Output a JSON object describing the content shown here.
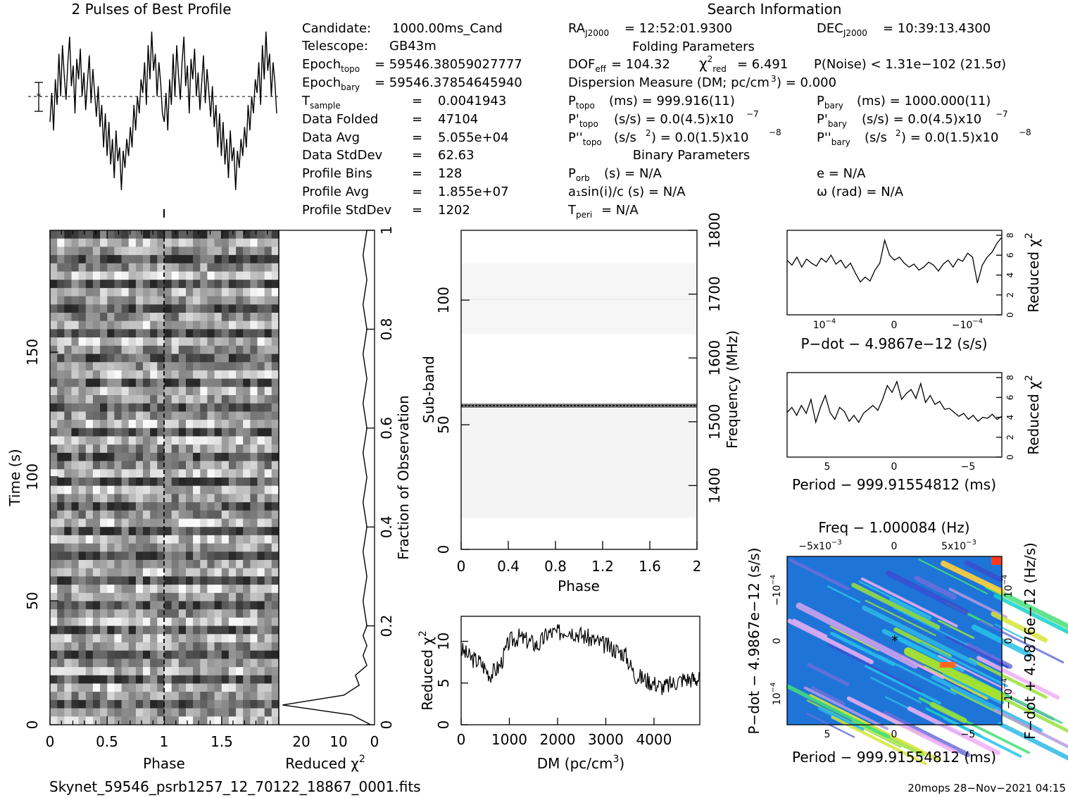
{
  "header": {
    "profile_title": "2 Pulses of Best Profile",
    "search_title": "Search Information",
    "folding_title": "Folding Parameters",
    "binary_title": "Binary Parameters"
  },
  "info_left": [
    {
      "label": "Candidate:",
      "value": "1000.00ms_Cand"
    },
    {
      "label": "Telescope:",
      "value": "GB43m"
    },
    {
      "label": "Epoch_topo",
      "value": "= 59546.38059027777"
    },
    {
      "label": "Epoch_bary",
      "value": "= 59546.37854645940"
    },
    {
      "label": "T_sample",
      "value": "0.0041943"
    },
    {
      "label": "Data Folded",
      "value": "47104"
    },
    {
      "label": "Data Avg",
      "value": "5.055e+04"
    },
    {
      "label": "Data StdDev",
      "value": "62.63"
    },
    {
      "label": "Profile Bins",
      "value": "128"
    },
    {
      "label": "Profile Avg",
      "value": "1.855e+07"
    },
    {
      "label": "Profile StdDev",
      "value": "1202"
    }
  ],
  "info_right": {
    "ra": "= 12:52:01.9300",
    "dec": "= 10:39:13.4300",
    "dof": "= 104.32",
    "chi2red": "= 6.491",
    "pnoise": "P(Noise) < 1.31e−102   (21.5σ)",
    "dm": "Dispersion Measure (DM; pc/cm",
    "dm_value": ") = 0.000",
    "ptopo": "(ms) =  999.916(11)",
    "pbary": "(ms) =  1000.000(11)",
    "pdtopo": "(s/s) = 0.0(4.5)x10",
    "pdbary": "(s/s) = 0.0(4.5)x10",
    "pddtopo": "(s/s",
    "pddtopo_tail": ") = 0.0(1.5)x10",
    "pddbary_tail": ") = 0.0(1.5)x10",
    "porb": "(s) = N/A",
    "asini": "a₁sin(i)/c (s) = N/A",
    "tperi": "= N/A",
    "ecc": "e = N/A",
    "omega": "ω (rad) = N/A"
  },
  "footer": {
    "filename": "Skynet_59546_psrb1257_12_70122_18867_0001.fits",
    "stamp": "20mops 28−Nov−2021 04:15"
  },
  "chart_data": [
    {
      "type": "line",
      "title": "2 Pulses of Best Profile",
      "xlabel": "",
      "ylabel": "",
      "x_range": [
        0,
        2
      ],
      "values": [
        0.45,
        0.62,
        0.4,
        0.7,
        0.55,
        0.85,
        0.6,
        0.9,
        0.72,
        0.58,
        0.8,
        0.95,
        0.66,
        0.78,
        0.5,
        0.82,
        0.7,
        0.88,
        0.6,
        0.74,
        0.52,
        0.68,
        0.84,
        0.56,
        0.76,
        0.62,
        0.48,
        0.66,
        0.42,
        0.55,
        0.3,
        0.5,
        0.25,
        0.45,
        0.2,
        0.35,
        0.12,
        0.4,
        0.22,
        0.3,
        0.05,
        0.28,
        0.18,
        0.35,
        0.25,
        0.42,
        0.3,
        0.55,
        0.4,
        0.6,
        0.5,
        0.7,
        0.62,
        0.8,
        0.55,
        0.9,
        0.7,
        0.98,
        0.75,
        0.85,
        0.6,
        0.8,
        0.68,
        0.5,
        0.45,
        0.62,
        0.4,
        0.7,
        0.55,
        0.85,
        0.6,
        0.9,
        0.72,
        0.58,
        0.8,
        0.95,
        0.66,
        0.78,
        0.5,
        0.82,
        0.7,
        0.88,
        0.6,
        0.74,
        0.52,
        0.68,
        0.84,
        0.56,
        0.76,
        0.62,
        0.48,
        0.66,
        0.42,
        0.55,
        0.3,
        0.5,
        0.25,
        0.45,
        0.2,
        0.35,
        0.12,
        0.4,
        0.22,
        0.3,
        0.05,
        0.28,
        0.18,
        0.35,
        0.25,
        0.42,
        0.3,
        0.55,
        0.4,
        0.6,
        0.5,
        0.7,
        0.62,
        0.8,
        0.55,
        0.9,
        0.7,
        0.98,
        0.75,
        0.85,
        0.6,
        0.8,
        0.68,
        0.5
      ]
    },
    {
      "type": "heatmap",
      "xlabel": "Phase",
      "ylabel": "Time (s)",
      "x_ticks": [
        "0",
        "0.5",
        "1",
        "1.5"
      ],
      "y_ticks": [
        "0",
        "50",
        "100",
        "150"
      ],
      "xlim": [
        0,
        2
      ],
      "ylim": [
        0,
        190
      ],
      "rows": 60
    },
    {
      "type": "line",
      "xlabel": "Reduced χ2",
      "ylabel": "Fraction of Observation",
      "x_ticks": [
        "20",
        "10",
        "0"
      ],
      "y_ticks": [
        "0",
        "0.2",
        "0.4",
        "0.6",
        "0.8",
        "1"
      ],
      "xlim": [
        25,
        0
      ],
      "ylim": [
        0,
        1
      ],
      "y": [
        0,
        0.02,
        0.04,
        0.06,
        0.08,
        0.1,
        0.12,
        0.14,
        0.16,
        0.18,
        0.2,
        0.25,
        0.3,
        0.35,
        0.4,
        0.45,
        0.5,
        0.55,
        0.6,
        0.65,
        0.7,
        0.75,
        0.8,
        0.85,
        0.9,
        0.95,
        1.0
      ],
      "x": [
        1,
        6,
        24,
        8,
        4,
        5,
        2,
        3,
        2,
        3,
        2,
        3,
        2,
        3,
        2,
        3,
        2,
        3,
        2,
        3,
        2,
        3,
        2,
        3,
        2,
        3,
        2
      ]
    },
    {
      "type": "heatmap",
      "xlabel": "Phase",
      "ylabel": "Sub-band",
      "y2label": "Frequency (MHz)",
      "x_ticks": [
        "0",
        "0.4",
        "0.8",
        "1.2",
        "1.6",
        "2"
      ],
      "y_ticks": [
        "0",
        "50",
        "100"
      ],
      "y2_ticks": [
        "1400",
        "1500",
        "1600",
        "1700",
        "1800"
      ],
      "xlim": [
        0,
        2
      ],
      "ylim": [
        0,
        128
      ],
      "highlight_subband": 58
    },
    {
      "type": "line",
      "xlabel": "DM (pc/cm3)",
      "ylabel": "Reduced χ2",
      "x_ticks": [
        "0",
        "1000",
        "2000",
        "3000",
        "4000"
      ],
      "y_ticks": [
        "0",
        "5",
        "10"
      ],
      "xlim": [
        0,
        4950
      ],
      "ylim": [
        0,
        13
      ],
      "x": [
        0,
        200,
        400,
        600,
        800,
        1000,
        1200,
        1400,
        1600,
        1800,
        2000,
        2200,
        2400,
        2600,
        2800,
        3000,
        3200,
        3400,
        3600,
        3800,
        4000,
        4200,
        4400,
        4600,
        4800,
        4950
      ],
      "y": [
        9,
        8,
        7.5,
        6,
        7,
        10,
        10.5,
        10,
        9.5,
        11,
        11,
        11.5,
        11,
        10.5,
        10,
        9.5,
        9,
        8.5,
        6,
        5.5,
        5,
        4.5,
        5,
        5.5,
        5.5,
        5.5
      ]
    },
    {
      "type": "line",
      "xlabel": "P−dot − 4.9867e−12 (s/s)",
      "ylabel": "Reduced χ2",
      "x_ticks": [
        "10⁻⁴",
        "0",
        "−10⁻⁴"
      ],
      "y_ticks": [
        "0",
        "2",
        "4",
        "6",
        "8"
      ],
      "ylim": [
        0,
        8.5
      ],
      "values": [
        5.5,
        5,
        5.8,
        4.8,
        5.6,
        5.2,
        4.9,
        5.7,
        5.3,
        6,
        5.1,
        5.5,
        4.7,
        5.2,
        4.2,
        3.3,
        3.8,
        3.4,
        4.5,
        5.2,
        7.5,
        6,
        5.5,
        5.8,
        5.2,
        4.8,
        5.1,
        4.5,
        4.8,
        5.3,
        5,
        4.4,
        5.1,
        5.5,
        4.8,
        5.6,
        5.4,
        6.2,
        5.8,
        3.2,
        5,
        5.8,
        6.3,
        7.2,
        7.8
      ]
    },
    {
      "type": "line",
      "xlabel": "Period − 999.91554812 (ms)",
      "ylabel": "Reduced χ2",
      "x_ticks": [
        "5",
        "0",
        "−5"
      ],
      "y_ticks": [
        "0",
        "2",
        "4",
        "6",
        "8"
      ],
      "ylim": [
        0,
        8.5
      ],
      "values": [
        4.5,
        5,
        4.2,
        5.2,
        4.4,
        5.8,
        3.5,
        5,
        6.2,
        4.5,
        3.8,
        5,
        4.6,
        3.6,
        4.2,
        3.5,
        4.4,
        4.8,
        5.2,
        4.7,
        5.8,
        7.2,
        6.5,
        7.6,
        5.8,
        6.4,
        6.8,
        5.9,
        7.4,
        5.5,
        6.2,
        5.3,
        5.6,
        4.8,
        4.9,
        4.5,
        4.1,
        4.4,
        3.8,
        4.2,
        3.6,
        4,
        3.9,
        4.3,
        3.8,
        4.1
      ]
    },
    {
      "type": "heatmap",
      "title": "Freq − 1.000084 (Hz)",
      "xlabel": "Period − 999.91554812 (ms)",
      "ylabel": "P−dot − 4.9867e−12 (s/s)",
      "y2label": "F−dot + 4.9876e−12 (Hz/s)",
      "x_ticks": [
        "5",
        "0",
        "−5"
      ],
      "x2_ticks": [
        "−5x10⁻³",
        "0",
        "5x10⁻³"
      ],
      "y_ticks": [
        "10⁻⁴",
        "0",
        "−10⁻⁴"
      ],
      "y2_ticks": [
        "−10⁻⁴",
        "0",
        "10⁻⁴"
      ]
    }
  ]
}
